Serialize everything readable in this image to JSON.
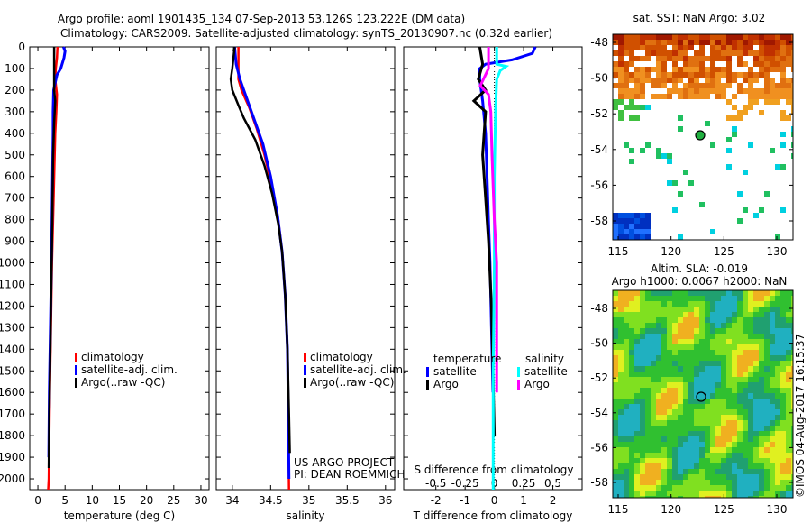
{
  "title": {
    "line1": "Argo profile: aoml 1901435_134 07-Sep-2013 53.126S 123.222E (DM data)",
    "line2": "Climatology: CARS2009. Satellite-adjusted climatology: synTS_20130907.nc (0.32d earlier)"
  },
  "colors": {
    "climatology": "#ff0000",
    "satellite": "#0000ff",
    "argo": "#000000",
    "sal_satellite": "#00ffff",
    "sal_argo": "#ff00ff"
  },
  "chart_data": [
    {
      "type": "line",
      "xlabel": "temperature (deg C)",
      "ylabel": "",
      "xlim": [
        -1.5,
        31.5
      ],
      "ylim": [
        2050,
        0
      ],
      "xticks": [
        "0",
        "5",
        "10",
        "15",
        "20",
        "25",
        "30"
      ],
      "yticks": [
        "0",
        "100",
        "200",
        "300",
        "400",
        "500",
        "600",
        "700",
        "800",
        "900",
        "1000",
        "1100",
        "1200",
        "1300",
        "1400",
        "1500",
        "1600",
        "1700",
        "1800",
        "1900",
        "2000"
      ],
      "legend": [
        "climatology",
        "satellite-adj. clim.",
        "Argo(..raw -QC)"
      ],
      "series": [
        {
          "name": "climatology",
          "color": "#ff0000",
          "points": [
            [
              3.6,
              0
            ],
            [
              3.5,
              50
            ],
            [
              3.3,
              100
            ],
            [
              3.2,
              150
            ],
            [
              3.5,
              220
            ],
            [
              3.4,
              300
            ],
            [
              3.2,
              400
            ],
            [
              3.0,
              600
            ],
            [
              2.8,
              800
            ],
            [
              2.6,
              1000
            ],
            [
              2.4,
              1300
            ],
            [
              2.2,
              1600
            ],
            [
              2.0,
              2000
            ],
            [
              1.9,
              2050
            ]
          ]
        },
        {
          "name": "satellite-adj. clim.",
          "color": "#0000ff",
          "points": [
            [
              4.7,
              0
            ],
            [
              5.0,
              20
            ],
            [
              4.8,
              50
            ],
            [
              4.2,
              100
            ],
            [
              3.5,
              130
            ],
            [
              2.9,
              200
            ],
            [
              2.8,
              300
            ],
            [
              2.8,
              400
            ],
            [
              2.7,
              600
            ],
            [
              2.6,
              800
            ],
            [
              2.5,
              1000
            ],
            [
              2.3,
              1300
            ],
            [
              2.1,
              1600
            ],
            [
              2.0,
              1900
            ]
          ]
        },
        {
          "name": "Argo(..raw -QC)",
          "color": "#000000",
          "points": [
            [
              3.0,
              0
            ],
            [
              3.0,
              100
            ],
            [
              3.0,
              200
            ],
            [
              3.2,
              250
            ],
            [
              3.0,
              350
            ],
            [
              2.8,
              500
            ],
            [
              2.7,
              700
            ],
            [
              2.6,
              900
            ],
            [
              2.4,
              1200
            ],
            [
              2.3,
              1400
            ],
            [
              2.1,
              1700
            ],
            [
              2.0,
              1950
            ]
          ]
        }
      ]
    },
    {
      "type": "line",
      "xlabel": "salinity",
      "xlim": [
        33.79,
        36.12
      ],
      "ylim": [
        2050,
        0
      ],
      "xticks": [
        "34",
        "34.5",
        "35",
        "35.5",
        "36"
      ],
      "legend": [
        "climatology",
        "satellite-adj. clim.",
        "Argo(..raw -QC)"
      ],
      "annotation": [
        "US ARGO PROJECT",
        "PI: DEAN ROEMMICH"
      ],
      "series": [
        {
          "name": "climatology",
          "color": "#ff0000",
          "points": [
            [
              34.08,
              0
            ],
            [
              34.08,
              150
            ],
            [
              34.12,
              200
            ],
            [
              34.22,
              280
            ],
            [
              34.32,
              380
            ],
            [
              34.42,
              500
            ],
            [
              34.52,
              650
            ],
            [
              34.6,
              800
            ],
            [
              34.65,
              950
            ],
            [
              34.69,
              1150
            ],
            [
              34.72,
              1400
            ],
            [
              34.73,
              1700
            ],
            [
              34.74,
              2050
            ]
          ]
        },
        {
          "name": "satellite-adj. clim.",
          "color": "#0000ff",
          "points": [
            [
              34.03,
              0
            ],
            [
              34.05,
              80
            ],
            [
              34.1,
              150
            ],
            [
              34.2,
              250
            ],
            [
              34.3,
              350
            ],
            [
              34.4,
              450
            ],
            [
              34.5,
              600
            ],
            [
              34.59,
              780
            ],
            [
              34.65,
              950
            ],
            [
              34.69,
              1150
            ],
            [
              34.72,
              1400
            ],
            [
              34.73,
              1700
            ],
            [
              34.74,
              2000
            ]
          ]
        },
        {
          "name": "Argo(..raw -QC)",
          "color": "#000000",
          "points": [
            [
              34.03,
              0
            ],
            [
              34.0,
              100
            ],
            [
              33.98,
              150
            ],
            [
              34.0,
              200
            ],
            [
              34.08,
              270
            ],
            [
              34.15,
              330
            ],
            [
              34.3,
              430
            ],
            [
              34.42,
              550
            ],
            [
              34.52,
              680
            ],
            [
              34.6,
              820
            ],
            [
              34.65,
              950
            ],
            [
              34.69,
              1150
            ],
            [
              34.72,
              1400
            ],
            [
              34.74,
              1700
            ],
            [
              34.75,
              1880
            ]
          ]
        }
      ]
    },
    {
      "type": "line",
      "xlabel": "T difference from climatology",
      "x2label": "S difference from climatology",
      "xlim": [
        -3.1,
        3.0
      ],
      "ylim": [
        2050,
        0
      ],
      "xticks": [
        "-2",
        "-1",
        "0",
        "1",
        "2"
      ],
      "x2ticks": [
        "-0.5",
        "-0.25",
        "0",
        "0.25",
        "0.5"
      ],
      "legend": {
        "temperature": "temperature",
        "salinity": "salinity",
        "items": [
          "satellite",
          "Argo",
          "satellite",
          "Argo"
        ]
      },
      "series": [
        {
          "name": "temperature satellite",
          "color": "#0000ff",
          "points": [
            [
              1.4,
              0
            ],
            [
              1.3,
              30
            ],
            [
              0.6,
              60
            ],
            [
              -0.3,
              80
            ],
            [
              -0.5,
              100
            ],
            [
              -0.5,
              150
            ],
            [
              -0.4,
              250
            ],
            [
              -0.3,
              400
            ],
            [
              -0.25,
              600
            ],
            [
              -0.2,
              800
            ],
            [
              -0.15,
              1000
            ],
            [
              -0.1,
              1300
            ],
            [
              -0.05,
              1600
            ]
          ]
        },
        {
          "name": "temperature Argo",
          "color": "#000000",
          "points": [
            [
              -0.5,
              0
            ],
            [
              -0.4,
              80
            ],
            [
              -0.55,
              150
            ],
            [
              -0.3,
              200
            ],
            [
              -0.7,
              250
            ],
            [
              -0.3,
              300
            ],
            [
              -0.4,
              500
            ],
            [
              -0.3,
              700
            ],
            [
              -0.2,
              900
            ],
            [
              -0.1,
              1200
            ],
            [
              -0.05,
              1500
            ],
            [
              0,
              1800
            ]
          ]
        },
        {
          "name": "salinity satellite",
          "s": true,
          "color": "#00ffff",
          "points": [
            [
              0.02,
              0
            ],
            [
              0.02,
              80
            ],
            [
              0.1,
              90
            ],
            [
              0.05,
              110
            ],
            [
              0.02,
              150
            ],
            [
              0.01,
              300
            ],
            [
              0.0,
              600
            ],
            [
              0.0,
              1000
            ],
            [
              -0.01,
              1500
            ],
            [
              -0.01,
              2050
            ]
          ]
        },
        {
          "name": "salinity Argo",
          "s": true,
          "color": "#ff00ff",
          "points": [
            [
              -0.05,
              0
            ],
            [
              -0.05,
              100
            ],
            [
              -0.12,
              180
            ],
            [
              -0.05,
              220
            ],
            [
              -0.03,
              300
            ],
            [
              -0.02,
              500
            ],
            [
              0.0,
              800
            ],
            [
              0.02,
              1000
            ],
            [
              0.02,
              1300
            ],
            [
              0.02,
              1600
            ]
          ]
        }
      ]
    }
  ],
  "maps": {
    "sst": {
      "title": "sat. SST: NaN Argo: 3.02",
      "xticks": [
        "115",
        "120",
        "125",
        "130"
      ],
      "yticks": [
        "-48",
        "-50",
        "-52",
        "-54",
        "-56",
        "-58"
      ]
    },
    "sla": {
      "title1": "Altim. SLA: -0.019",
      "title2": "Argo h1000: 0.0067 h2000: NaN",
      "xticks": [
        "115",
        "120",
        "125",
        "130"
      ],
      "yticks": [
        "-48",
        "-50",
        "-52",
        "-54",
        "-56",
        "-58"
      ]
    },
    "credit": "©IMOS 04-Aug-2017 16:15:37"
  }
}
